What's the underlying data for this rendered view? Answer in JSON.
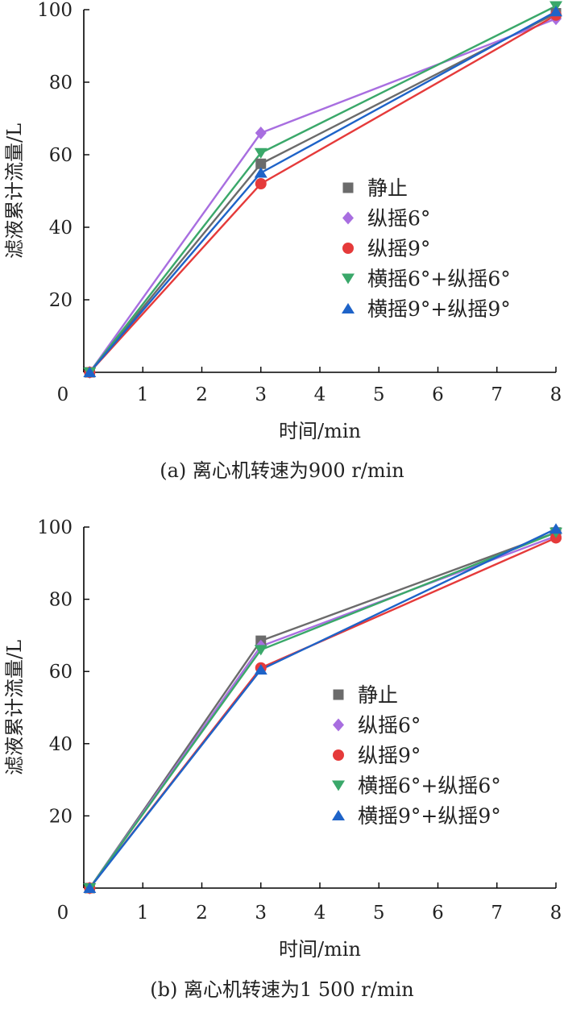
{
  "charts": [
    {
      "type": "line",
      "caption": "(a) 离心机转速为900 r/min",
      "xlabel": "时间/min",
      "ylabel": "滤液累计流量/L",
      "xlim": [
        0,
        8
      ],
      "ylim": [
        0,
        100
      ],
      "xticks": [
        0,
        1,
        2,
        3,
        4,
        5,
        6,
        7,
        8
      ],
      "yticks": [
        20,
        40,
        60,
        80,
        100
      ],
      "x_origin_label": "0",
      "legend_position": "center-right",
      "grid": false,
      "series": [
        {
          "name": "静止",
          "color": "#6b6b6b",
          "marker": "square",
          "x": [
            0.1,
            3,
            8
          ],
          "y": [
            0,
            57.5,
            99
          ]
        },
        {
          "name": "纵摇6°",
          "color": "#a86ee0",
          "marker": "diamond",
          "x": [
            0.1,
            3,
            8
          ],
          "y": [
            0,
            66,
            97.5
          ]
        },
        {
          "name": "纵摇9°",
          "color": "#e53a3a",
          "marker": "circle",
          "x": [
            0.1,
            3,
            8
          ],
          "y": [
            0,
            52,
            98.5
          ]
        },
        {
          "name": "横摇6°+纵摇6°",
          "color": "#3aa86a",
          "marker": "triangle-down",
          "x": [
            0.1,
            3,
            8
          ],
          "y": [
            0,
            60.5,
            101
          ]
        },
        {
          "name": "横摇9°+纵摇9°",
          "color": "#1e63c8",
          "marker": "triangle-up",
          "x": [
            0.1,
            3,
            8
          ],
          "y": [
            0,
            55,
            99.5
          ]
        }
      ]
    },
    {
      "type": "line",
      "caption": "(b) 离心机转速为1 500 r/min",
      "xlabel": "时间/min",
      "ylabel": "滤液累计流量/L",
      "xlim": [
        0,
        8
      ],
      "ylim": [
        0,
        100
      ],
      "xticks": [
        0,
        1,
        2,
        3,
        4,
        5,
        6,
        7,
        8
      ],
      "yticks": [
        20,
        40,
        60,
        80,
        100
      ],
      "x_origin_label": "0",
      "legend_position": "center-right",
      "grid": false,
      "series": [
        {
          "name": "静止",
          "color": "#6b6b6b",
          "marker": "square",
          "x": [
            0.1,
            3,
            8
          ],
          "y": [
            0,
            68.5,
            98.5
          ]
        },
        {
          "name": "纵摇6°",
          "color": "#a86ee0",
          "marker": "diamond",
          "x": [
            0.1,
            3,
            8
          ],
          "y": [
            0,
            67,
            97.5
          ]
        },
        {
          "name": "纵摇9°",
          "color": "#e53a3a",
          "marker": "circle",
          "x": [
            0.1,
            3,
            8
          ],
          "y": [
            0,
            61,
            97
          ]
        },
        {
          "name": "横摇6°+纵摇6°",
          "color": "#3aa86a",
          "marker": "triangle-down",
          "x": [
            0.1,
            3,
            8
          ],
          "y": [
            0,
            66,
            98.5
          ]
        },
        {
          "name": "横摇9°+纵摇9°",
          "color": "#1e63c8",
          "marker": "triangle-up",
          "x": [
            0.1,
            3,
            8
          ],
          "y": [
            0,
            60.5,
            99.5
          ]
        }
      ]
    }
  ]
}
